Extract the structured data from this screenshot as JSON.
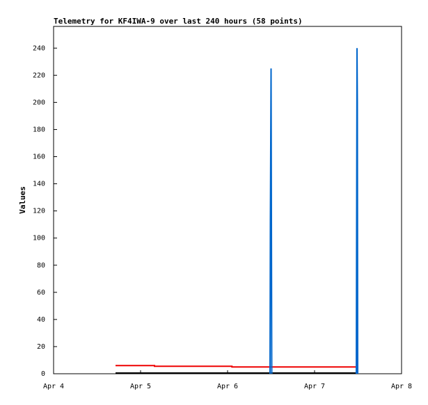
{
  "chart_data": {
    "type": "line",
    "title": "Telemetry for KF4IWA-9 over last 240 hours (58 points)",
    "y_label": "Values",
    "xlim": [
      0,
      4
    ],
    "xticks": [
      {
        "value": 0,
        "label": "Apr 4"
      },
      {
        "value": 1,
        "label": "Apr 5"
      },
      {
        "value": 2,
        "label": "Apr 6"
      },
      {
        "value": 3,
        "label": "Apr 7"
      },
      {
        "value": 4,
        "label": "Apr 8"
      }
    ],
    "ylim": [
      0,
      256
    ],
    "yticks": [
      0,
      20,
      40,
      60,
      80,
      100,
      120,
      140,
      160,
      180,
      200,
      220,
      240
    ],
    "series": [
      {
        "color": "#ee0000",
        "x": [
          0.712,
          1.16,
          1.16,
          2.05,
          2.05,
          3.48
        ],
        "values": [
          6,
          6,
          5.5,
          5.5,
          5,
          5
        ]
      },
      {
        "color": "#000000",
        "x": [
          0.712,
          3.48
        ],
        "values": [
          0.5,
          0.5
        ]
      },
      {
        "color": "#0066cc",
        "x": [
          2.488,
          2.492,
          2.5,
          2.508,
          3.0,
          3.48,
          3.484,
          3.488,
          3.492,
          3.496
        ],
        "values": [
          0,
          113,
          225,
          0,
          null,
          0,
          121,
          240,
          200,
          0
        ]
      }
    ]
  }
}
